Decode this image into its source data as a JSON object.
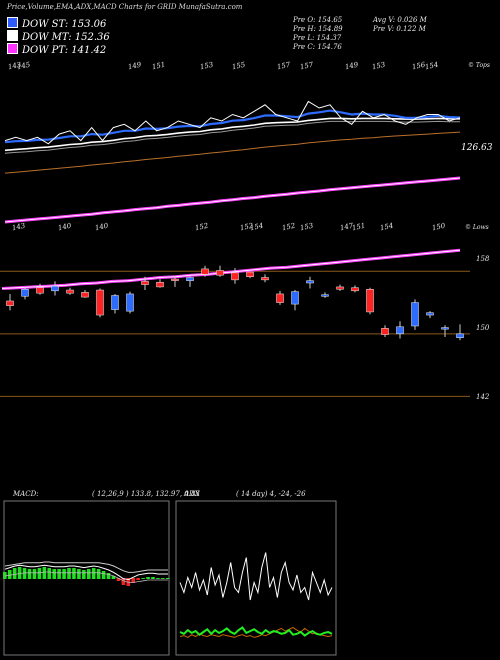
{
  "header": {
    "title": "Price,Volume,EMA,ADX,MACD Charts for GRID MunafaSutra.com"
  },
  "legend": [
    {
      "label": "DOW ST: 153.06",
      "color": "#2e5cff"
    },
    {
      "label": "DOW MT: 152.36",
      "color": "#ffffff"
    },
    {
      "label": "DOW PT: 141.42",
      "color": "#ff33ff"
    }
  ],
  "stats": {
    "prev_open": "Pre   O: 154.65",
    "prev_high": "Pre   H: 154.89",
    "prev_low": "Pre   L: 154.37",
    "prev_close": "Pre   C: 154.76",
    "avg_volume": "Avg V: 0.026  M",
    "prev_volume": "Pre   V: 0.122  M"
  },
  "tags": {
    "tops": "© Tops",
    "lows": "© Lows",
    "ema_value": "126.63"
  },
  "chart_data": [
    {
      "type": "line",
      "name": "ema-panel",
      "top_labels": [
        "143",
        "145",
        "149",
        "151",
        "153",
        "155",
        "157",
        "157",
        "149",
        "153",
        "156",
        "154"
      ],
      "bottom_labels": [
        "143",
        "140",
        "140",
        "152",
        "152",
        "154",
        "152",
        "153",
        "147",
        "151",
        "154",
        "150"
      ],
      "price": [
        149,
        150,
        149,
        150,
        148,
        151,
        152,
        149,
        153,
        149,
        153,
        154,
        152,
        155,
        152,
        153,
        155,
        154,
        153,
        156,
        155,
        157,
        156,
        158,
        160,
        157,
        156,
        155,
        161,
        159,
        160,
        156,
        154,
        158,
        156,
        157,
        155,
        154,
        156,
        157,
        157,
        155,
        156
      ],
      "ema_short": [
        148.5,
        148.8,
        148.9,
        149.2,
        149.3,
        149.8,
        150.3,
        150.3,
        151,
        150.8,
        151.4,
        152,
        152,
        152.7,
        152.6,
        152.8,
        153.3,
        153.5,
        153.4,
        154.1,
        154.4,
        155.1,
        155.3,
        155.9,
        156.7,
        156.7,
        156.5,
        156.2,
        157.3,
        157.7,
        158.2,
        157.7,
        157,
        157.3,
        157,
        157,
        156.6,
        156,
        156,
        156.3,
        156.6,
        156.2,
        156.1
      ],
      "ema_mid": [
        146,
        146.3,
        146.5,
        146.8,
        147,
        147.4,
        147.8,
        148,
        148.5,
        148.7,
        149.1,
        149.6,
        149.9,
        150.4,
        150.6,
        150.9,
        151.3,
        151.6,
        151.8,
        152.3,
        152.6,
        153.1,
        153.4,
        153.8,
        154.3,
        154.5,
        154.6,
        154.7,
        155.2,
        155.5,
        155.8,
        155.8,
        155.7,
        155.8,
        155.8,
        155.8,
        155.7,
        155.6,
        155.6,
        155.7,
        155.8,
        155.7,
        155.7
      ],
      "ema_long": [
        139,
        139.3,
        139.6,
        139.9,
        140.2,
        140.5,
        140.8,
        141.1,
        141.5,
        141.8,
        142.1,
        142.5,
        142.8,
        143.2,
        143.5,
        143.8,
        144.2,
        144.5,
        144.8,
        145.2,
        145.5,
        145.9,
        146.2,
        146.6,
        147,
        147.3,
        147.6,
        147.9,
        148.3,
        148.6,
        148.9,
        149.2,
        149.4,
        149.7,
        149.9,
        150.2,
        150.4,
        150.6,
        150.8,
        151,
        151.2,
        151.4,
        151.6
      ],
      "ema_longest": [
        124,
        124.3,
        124.6,
        124.9,
        125.2,
        125.5,
        125.8,
        126.1,
        126.4,
        126.8,
        127.1,
        127.4,
        127.8,
        128.1,
        128.4,
        128.8,
        129.1,
        129.5,
        129.8,
        130.1,
        130.5,
        130.8,
        131.2,
        131.5,
        131.9,
        132.2,
        132.5,
        132.9,
        133.2,
        133.5,
        133.9,
        134.2,
        134.5,
        134.8,
        135.1,
        135.4,
        135.7,
        136,
        136.3,
        136.6,
        136.9,
        137.2,
        137.5
      ]
    },
    {
      "type": "candlestick",
      "name": "price-panel",
      "ylim": [
        140,
        162
      ],
      "hlines": [
        158,
        150,
        142
      ],
      "y_labels": [
        "158",
        "150",
        "142"
      ],
      "dow_pt": [
        155.8,
        155.9,
        156,
        156.1,
        156.2,
        156.4,
        156.5,
        156.7,
        156.8,
        157,
        157.2,
        157.3,
        157.5,
        157.6,
        157.8,
        158,
        158.2,
        158.4,
        158.5,
        158.7,
        158.9,
        159.1,
        159.3,
        159.5,
        159.7,
        159.9,
        160.1,
        160.3,
        160.5,
        160.7
      ],
      "candles": [
        {
          "o": 154.2,
          "h": 155.1,
          "l": 153.0,
          "c": 153.6
        },
        {
          "o": 154.8,
          "h": 156.0,
          "l": 154.4,
          "c": 155.7
        },
        {
          "o": 155.9,
          "h": 156.4,
          "l": 155.0,
          "c": 155.2
        },
        {
          "o": 155.5,
          "h": 156.7,
          "l": 154.9,
          "c": 156.1
        },
        {
          "o": 155.6,
          "h": 155.9,
          "l": 155.0,
          "c": 155.2
        },
        {
          "o": 155.3,
          "h": 155.6,
          "l": 154.6,
          "c": 154.7
        },
        {
          "o": 155.6,
          "h": 155.8,
          "l": 152.1,
          "c": 152.4
        },
        {
          "o": 153.1,
          "h": 155.1,
          "l": 152.6,
          "c": 154.9
        },
        {
          "o": 152.9,
          "h": 155.4,
          "l": 152.6,
          "c": 155.1
        },
        {
          "o": 156.7,
          "h": 157.3,
          "l": 155.6,
          "c": 156.3
        },
        {
          "o": 156.6,
          "h": 157.0,
          "l": 155.9,
          "c": 156.0
        },
        {
          "o": 157.0,
          "h": 157.4,
          "l": 156.0,
          "c": 156.9
        },
        {
          "o": 156.8,
          "h": 157.3,
          "l": 156.0,
          "c": 157.2
        },
        {
          "o": 158.3,
          "h": 158.7,
          "l": 157.3,
          "c": 157.6
        },
        {
          "o": 158.1,
          "h": 158.7,
          "l": 157.3,
          "c": 157.5
        },
        {
          "o": 157.8,
          "h": 158.4,
          "l": 156.4,
          "c": 156.9
        },
        {
          "o": 157.9,
          "h": 157.9,
          "l": 157.1,
          "c": 157.3
        },
        {
          "o": 157.2,
          "h": 157.6,
          "l": 156.6,
          "c": 156.9
        },
        {
          "o": 155.1,
          "h": 155.5,
          "l": 153.7,
          "c": 154.0
        },
        {
          "o": 153.8,
          "h": 155.6,
          "l": 153.0,
          "c": 155.4
        },
        {
          "o": 156.5,
          "h": 157.3,
          "l": 155.8,
          "c": 156.8
        },
        {
          "o": 154.8,
          "h": 155.3,
          "l": 154.6,
          "c": 155.0
        },
        {
          "o": 156.0,
          "h": 156.3,
          "l": 155.5,
          "c": 155.7
        },
        {
          "o": 155.9,
          "h": 156.2,
          "l": 155.3,
          "c": 155.5
        },
        {
          "o": 155.7,
          "h": 155.9,
          "l": 152.5,
          "c": 152.8
        },
        {
          "o": 150.7,
          "h": 151.1,
          "l": 149.6,
          "c": 149.9
        },
        {
          "o": 150.0,
          "h": 151.6,
          "l": 149.4,
          "c": 150.9
        },
        {
          "o": 151.0,
          "h": 154.4,
          "l": 150.5,
          "c": 154.0
        },
        {
          "o": 152.4,
          "h": 152.9,
          "l": 152.0,
          "c": 152.7
        },
        {
          "o": 150.6,
          "h": 151.1,
          "l": 149.6,
          "c": 150.8
        },
        {
          "o": 149.5,
          "h": 151.2,
          "l": 149.2,
          "c": 150.0
        }
      ]
    },
    {
      "type": "line",
      "name": "macd-panel",
      "title": "MACD:",
      "params": "( 12,26,9 ) 133.8, 132.97, 0.83",
      "macd": [
        0.6,
        0.8,
        1.0,
        1.1,
        1.0,
        0.9,
        0.9,
        1.0,
        1.1,
        1.0,
        0.9,
        0.9,
        0.9,
        1.0,
        1.0,
        0.9,
        0.8,
        0.9,
        1.0,
        0.9,
        0.7,
        0.5,
        0.2,
        -0.2,
        -0.6,
        -0.7,
        -0.4,
        -0.1,
        0.0,
        0.1,
        0.1,
        0.0,
        0.0,
        0.0
      ],
      "signal": [
        0.5,
        0.6,
        0.7,
        0.8,
        0.9,
        0.9,
        0.9,
        0.9,
        1.0,
        1.0,
        0.9,
        0.9,
        0.9,
        0.9,
        0.9,
        0.9,
        0.9,
        0.9,
        0.9,
        0.9,
        0.8,
        0.7,
        0.5,
        0.2,
        -0.1,
        -0.3,
        -0.3,
        -0.2,
        -0.1,
        0.0,
        0.0,
        0.0,
        0.0,
        0.0
      ]
    },
    {
      "type": "line",
      "name": "adx-panel",
      "title": "ADX",
      "params": "( 14  day) 4,  -24,  -26",
      "adx": [
        62,
        58,
        64,
        60,
        66,
        59,
        63,
        57,
        68,
        61,
        65,
        56,
        62,
        70,
        60,
        58,
        66,
        72,
        55,
        62,
        58,
        68,
        74,
        60,
        64,
        56,
        66,
        70,
        62,
        59,
        65,
        58,
        60,
        55,
        66,
        62,
        58,
        63,
        57,
        60
      ],
      "plus_di": [
        20,
        18,
        22,
        19,
        21,
        17,
        20,
        23,
        18,
        22,
        19,
        21,
        24,
        20,
        18,
        22,
        25,
        19,
        21,
        23,
        20,
        18,
        22,
        19,
        21,
        20,
        18,
        19,
        22,
        17,
        18,
        20,
        16,
        19,
        21,
        18,
        17,
        19,
        20,
        18
      ],
      "minus_di": [
        15,
        16,
        14,
        17,
        15,
        18,
        16,
        15,
        17,
        16,
        15,
        17,
        16,
        15,
        14,
        16,
        17,
        15,
        16,
        14,
        15,
        17,
        16,
        18,
        20,
        22,
        24,
        21,
        23,
        25,
        22,
        20,
        24,
        21,
        18,
        19,
        17,
        16,
        15,
        16
      ]
    }
  ]
}
